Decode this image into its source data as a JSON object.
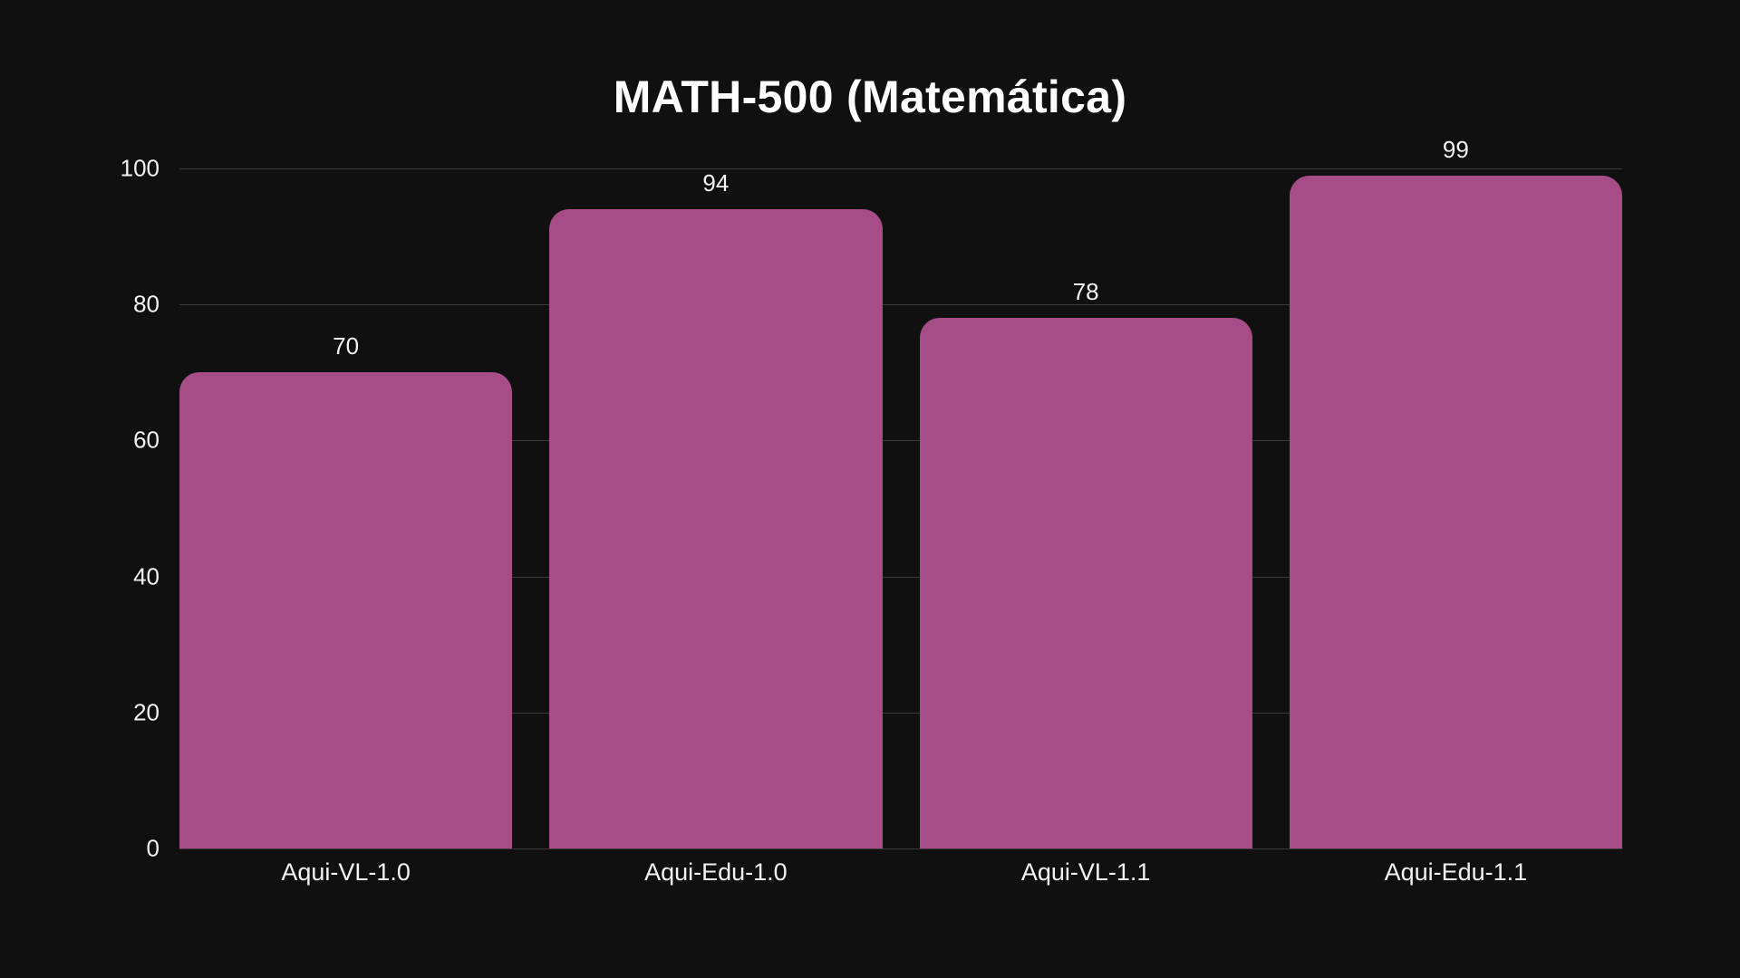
{
  "chart_data": {
    "type": "bar",
    "title": "MATH-500 (Matemática)",
    "categories": [
      "Aqui-VL-1.0",
      "Aqui-Edu-1.0",
      "Aqui-VL-1.1",
      "Aqui-Edu-1.1"
    ],
    "values": [
      70,
      94,
      78,
      99
    ],
    "xlabel": "",
    "ylabel": "",
    "ylim": [
      0,
      100
    ],
    "yticks": [
      0,
      20,
      40,
      60,
      80,
      100
    ],
    "grid": true,
    "legend": null,
    "bar_color": "#a64c86",
    "background": "#101010"
  },
  "labels": {
    "yticks": [
      "0",
      "20",
      "40",
      "60",
      "80",
      "100"
    ],
    "values": [
      "70",
      "94",
      "78",
      "99"
    ]
  }
}
